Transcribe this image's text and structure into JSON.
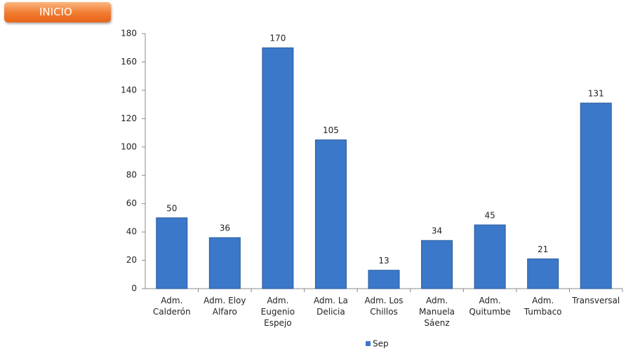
{
  "button": {
    "label": "INICIO"
  },
  "chart_data": {
    "type": "bar",
    "categories": [
      "Adm. Calderón",
      "Adm. Eloy Alfaro",
      "Adm. Eugenio Espejo",
      "Adm. La Delicia",
      "Adm. Los Chillos",
      "Adm. Manuela Sáenz",
      "Adm. Quitumbe",
      "Adm. Tumbaco",
      "Transversal"
    ],
    "series": [
      {
        "name": "Sep",
        "color": "#3b78c9",
        "values": [
          50,
          36,
          170,
          105,
          13,
          34,
          45,
          21,
          131
        ]
      }
    ],
    "ylim": [
      0,
      180
    ],
    "yticks": [
      0,
      20,
      40,
      60,
      80,
      100,
      120,
      140,
      160,
      180
    ],
    "grid": false,
    "legend": "bottom"
  }
}
